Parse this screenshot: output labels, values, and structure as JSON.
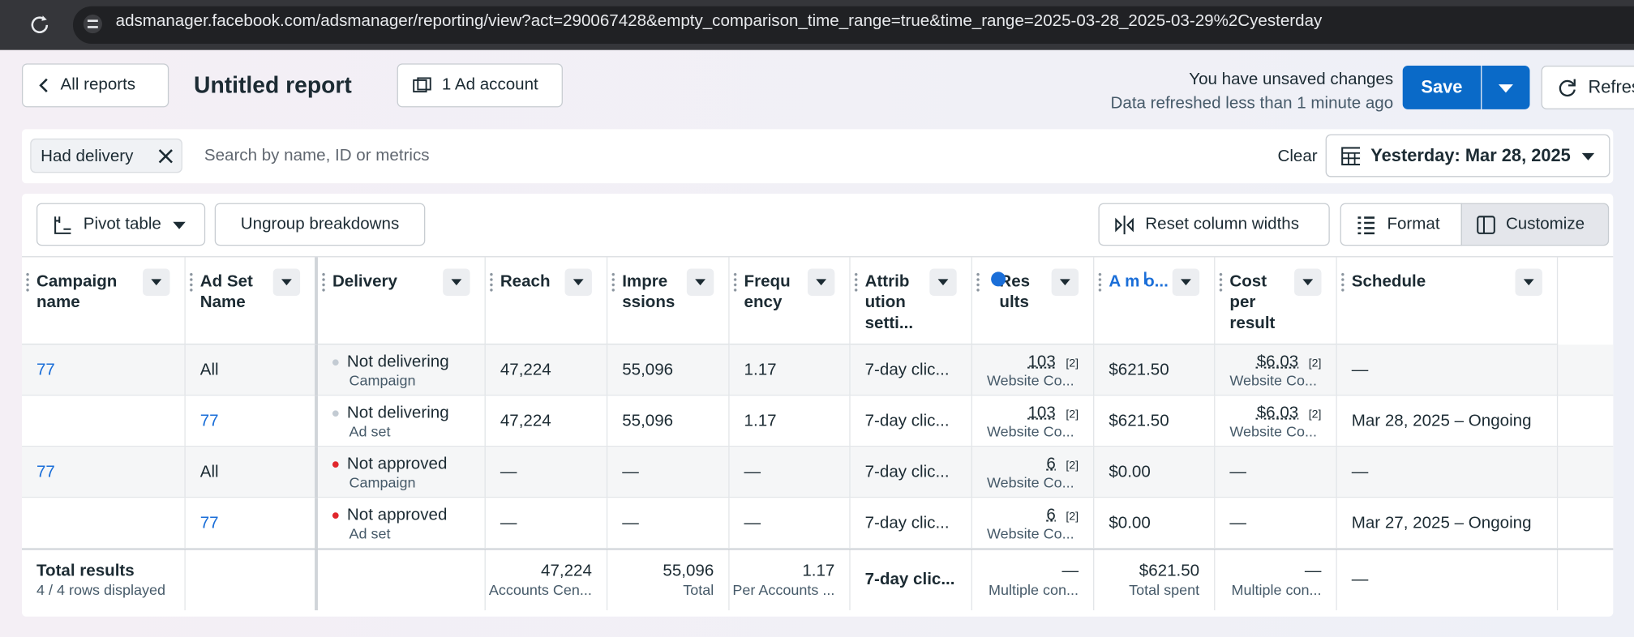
{
  "browser": {
    "url": "adsmanager.facebook.com/adsmanager/reporting/view?act=290067428&empty_comparison_time_range=true&time_range=2025-03-28_2025-03-29%2Cyesterday"
  },
  "toolbar": {
    "back": "All reports",
    "title": "Untitled report",
    "account": "1 Ad account",
    "status": "You have unsaved changes",
    "refreshed": "Data refreshed less than 1 minute ago",
    "save": "Save",
    "refresh": "Refresh"
  },
  "filters": {
    "chip": "Had delivery",
    "search": "Search by name, ID or metrics",
    "clear": "Clear",
    "date": "Yesterday: Mar 28, 2025"
  },
  "table_toolbar": {
    "pivot": "Pivot table",
    "ungroup": "Ungroup breakdowns",
    "reset": "Reset column widths",
    "format": "Format",
    "customize": "Customize"
  },
  "table": {
    "columns": [
      "Campaign name",
      "Ad Set Name",
      "Delivery",
      "Reach",
      "Impre ssions",
      "Frequ ency",
      "Attrib ution setti...",
      "Res ults",
      "A m o...",
      "Cost per result",
      "Schedule"
    ],
    "rows": [
      [
        {
          "link": "77"
        },
        "All",
        {
          "dot": "#c3cbd3",
          "text": "Not delivering",
          "sub": "Campaign"
        },
        "47,224",
        "55,096",
        "1.17",
        "7-day clic...",
        {
          "value": "103",
          "note": "[2]",
          "sub": "Website Co..."
        },
        "$621.50",
        {
          "value": "$6.03",
          "note": "[2]",
          "sub": "Website Co..."
        },
        "—"
      ],
      [
        null,
        {
          "link": "77"
        },
        {
          "dot": "#c3cbd3",
          "text": "Not delivering",
          "sub": "Ad set"
        },
        "47,224",
        "55,096",
        "1.17",
        "7-day clic...",
        {
          "value": "103",
          "note": "[2]",
          "sub": "Website Co..."
        },
        "$621.50",
        {
          "value": "$6.03",
          "note": "[2]",
          "sub": "Website Co..."
        },
        "Mar 28, 2025 – Ongoing"
      ],
      [
        {
          "link": "77"
        },
        "All",
        {
          "dot": "#e0262b",
          "text": "Not approved",
          "sub": "Campaign"
        },
        "—",
        "—",
        "—",
        "7-day clic...",
        {
          "value": "6",
          "note": "[2]",
          "sub": "Website Co..."
        },
        "$0.00",
        "—",
        "—"
      ],
      [
        null,
        {
          "link": "77"
        },
        {
          "dot": "#e0262b",
          "text": "Not approved",
          "sub": "Ad set"
        },
        "—",
        "—",
        "—",
        "7-day clic...",
        {
          "value": "6",
          "note": "[2]",
          "sub": "Website Co..."
        },
        "$0.00",
        "—",
        "Mar 27, 2025 – Ongoing"
      ]
    ],
    "totals": [
      {
        "title": "Total results",
        "sub": "4 / 4 rows displayed"
      },
      null,
      null,
      {
        "total": "47,224",
        "sub": "Accounts Cen..."
      },
      {
        "total": "55,096",
        "sub": "Total"
      },
      {
        "total": "1.17",
        "sub": "Per Accounts ..."
      },
      {
        "bold": "7-day clic..."
      },
      {
        "total": "—",
        "sub": "Multiple con..."
      },
      {
        "total": "$621.50",
        "sub": "Total spent"
      },
      {
        "total": "—",
        "sub": "Multiple con..."
      },
      "—"
    ]
  }
}
